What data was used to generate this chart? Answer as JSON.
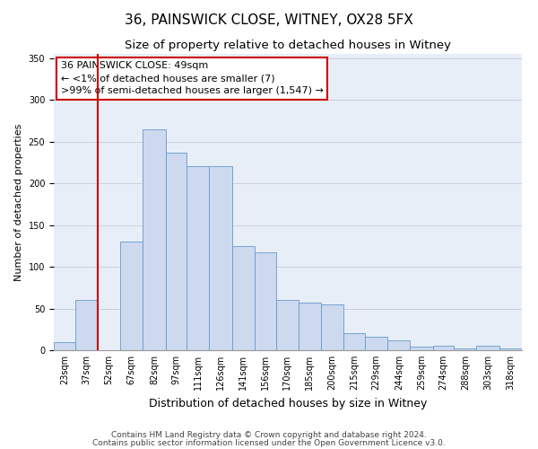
{
  "title": "36, PAINSWICK CLOSE, WITNEY, OX28 5FX",
  "subtitle": "Size of property relative to detached houses in Witney",
  "xlabel": "Distribution of detached houses by size in Witney",
  "ylabel": "Number of detached properties",
  "categories": [
    "23sqm",
    "37sqm",
    "52sqm",
    "67sqm",
    "82sqm",
    "97sqm",
    "111sqm",
    "126sqm",
    "141sqm",
    "156sqm",
    "170sqm",
    "185sqm",
    "200sqm",
    "215sqm",
    "229sqm",
    "244sqm",
    "259sqm",
    "274sqm",
    "288sqm",
    "303sqm",
    "318sqm"
  ],
  "bin_edges": [
    23,
    37,
    52,
    67,
    82,
    97,
    111,
    126,
    141,
    156,
    170,
    185,
    200,
    215,
    229,
    244,
    259,
    274,
    288,
    303,
    318,
    333
  ],
  "values": [
    10,
    60,
    0,
    130,
    265,
    237,
    220,
    220,
    125,
    117,
    60,
    57,
    55,
    20,
    16,
    12,
    4,
    5,
    2,
    5,
    2
  ],
  "bar_color": "#ccd9ee",
  "bar_edge_color": "#6699cc",
  "vline_x": 52,
  "vline_color": "#cc0000",
  "annotation_line1": "36 PAINSWICK CLOSE: 49sqm",
  "annotation_line2": "← <1% of detached houses are smaller (7)",
  "annotation_line3": ">99% of semi-detached houses are larger (1,547) →",
  "ylim": [
    0,
    355
  ],
  "yticks": [
    0,
    50,
    100,
    150,
    200,
    250,
    300,
    350
  ],
  "grid_color": "#c8d0e0",
  "background_color": "#e8eef8",
  "footer_line1": "Contains HM Land Registry data © Crown copyright and database right 2024.",
  "footer_line2": "Contains public sector information licensed under the Open Government Licence v3.0.",
  "title_fontsize": 11,
  "subtitle_fontsize": 9.5,
  "xlabel_fontsize": 9,
  "ylabel_fontsize": 8,
  "tick_fontsize": 7,
  "annotation_fontsize": 8,
  "footer_fontsize": 6.5
}
